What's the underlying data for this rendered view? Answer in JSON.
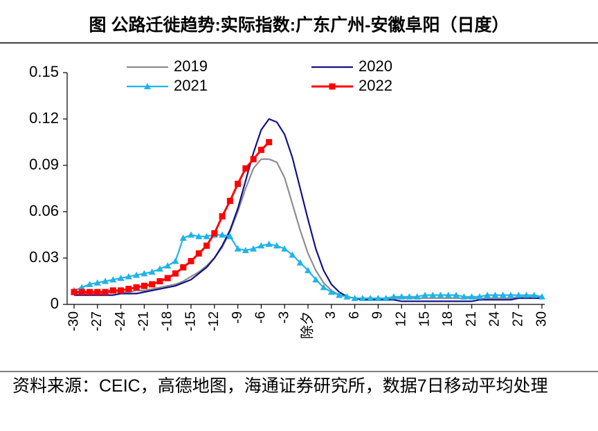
{
  "chart_data": {
    "type": "line",
    "title": "图  公路迁徙趋势:实际指数:广东广州-安徽阜阳（日度）",
    "source": "资料来源：CEIC，高德地图，海通证券研究所，数据7日移动平均处理",
    "x": [
      -30,
      -29,
      -28,
      -27,
      -26,
      -25,
      -24,
      -23,
      -22,
      -21,
      -20,
      -19,
      -18,
      -17,
      -16,
      -15,
      -14,
      -13,
      -12,
      -11,
      -10,
      -9,
      -8,
      -7,
      -6,
      -5,
      -4,
      -3,
      -2,
      -1,
      0,
      1,
      2,
      3,
      4,
      5,
      6,
      7,
      8,
      9,
      10,
      11,
      12,
      13,
      14,
      15,
      16,
      17,
      18,
      19,
      20,
      21,
      22,
      23,
      24,
      25,
      26,
      27,
      28,
      29,
      30
    ],
    "xlim": [
      -30,
      30
    ],
    "xticks": [
      -30,
      -27,
      -24,
      -21,
      -18,
      -15,
      -12,
      -9,
      -6,
      -3,
      {
        "value": 0,
        "label": "除夕"
      },
      3,
      6,
      9,
      12,
      15,
      18,
      21,
      24,
      27,
      30
    ],
    "ylim": [
      0,
      0.15
    ],
    "yticks": [
      0,
      0.03,
      0.06,
      0.09,
      0.12,
      0.15
    ],
    "grid": false,
    "legend": "top",
    "series": [
      {
        "name": "2019",
        "color": "#8c8c8c",
        "marker": "none",
        "values": [
          0.007,
          0.007,
          0.007,
          0.007,
          0.007,
          0.008,
          0.008,
          0.008,
          0.009,
          0.009,
          0.01,
          0.011,
          0.012,
          0.013,
          0.015,
          0.018,
          0.021,
          0.025,
          0.03,
          0.037,
          0.047,
          0.06,
          0.075,
          0.088,
          0.094,
          0.094,
          0.092,
          0.082,
          0.065,
          0.048,
          0.033,
          0.022,
          0.014,
          0.009,
          0.006,
          0.005,
          0.004,
          0.004,
          0.004,
          0.004,
          0.004,
          0.004,
          0.004,
          0.004,
          0.004,
          0.004,
          0.004,
          0.004,
          0.004,
          0.004,
          0.004,
          0.004,
          0.004,
          0.004,
          0.004,
          0.004,
          0.004,
          0.005,
          0.005,
          0.005,
          0.005
        ]
      },
      {
        "name": "2020",
        "color": "#10108a",
        "marker": "none",
        "values": [
          0.006,
          0.006,
          0.006,
          0.006,
          0.006,
          0.006,
          0.007,
          0.007,
          0.007,
          0.008,
          0.009,
          0.01,
          0.011,
          0.012,
          0.014,
          0.016,
          0.02,
          0.024,
          0.03,
          0.038,
          0.048,
          0.062,
          0.08,
          0.098,
          0.113,
          0.12,
          0.118,
          0.11,
          0.095,
          0.075,
          0.055,
          0.036,
          0.022,
          0.013,
          0.008,
          0.005,
          0.004,
          0.003,
          0.003,
          0.003,
          0.003,
          0.003,
          0.002,
          0.002,
          0.002,
          0.002,
          0.002,
          0.002,
          0.002,
          0.002,
          0.002,
          0.002,
          0.003,
          0.003,
          0.003,
          0.003,
          0.003,
          0.004,
          0.004,
          0.004,
          0.004
        ]
      },
      {
        "name": "2021",
        "color": "#1eb4e8",
        "marker": "triangle",
        "values": [
          0.009,
          0.011,
          0.013,
          0.014,
          0.015,
          0.016,
          0.017,
          0.018,
          0.019,
          0.02,
          0.021,
          0.023,
          0.025,
          0.028,
          0.043,
          0.045,
          0.044,
          0.044,
          0.045,
          0.045,
          0.044,
          0.036,
          0.035,
          0.036,
          0.038,
          0.039,
          0.038,
          0.036,
          0.032,
          0.027,
          0.022,
          0.016,
          0.011,
          0.008,
          0.006,
          0.005,
          0.004,
          0.004,
          0.004,
          0.004,
          0.004,
          0.005,
          0.005,
          0.005,
          0.005,
          0.006,
          0.006,
          0.006,
          0.006,
          0.006,
          0.005,
          0.005,
          0.005,
          0.006,
          0.006,
          0.006,
          0.006,
          0.006,
          0.006,
          0.006,
          0.005
        ]
      },
      {
        "name": "2022",
        "color": "#ff0000",
        "marker": "square",
        "values": [
          0.008,
          0.008,
          0.008,
          0.008,
          0.008,
          0.009,
          0.009,
          0.01,
          0.011,
          0.012,
          0.013,
          0.015,
          0.017,
          0.02,
          0.024,
          0.028,
          0.033,
          0.038,
          0.046,
          0.057,
          0.067,
          0.078,
          0.088,
          0.094,
          0.1,
          0.105,
          null,
          null,
          null,
          null,
          null,
          null,
          null,
          null,
          null,
          null,
          null,
          null,
          null,
          null,
          null,
          null,
          null,
          null,
          null,
          null,
          null,
          null,
          null,
          null,
          null,
          null,
          null,
          null,
          null,
          null,
          null,
          null,
          null,
          null,
          null
        ]
      }
    ]
  }
}
